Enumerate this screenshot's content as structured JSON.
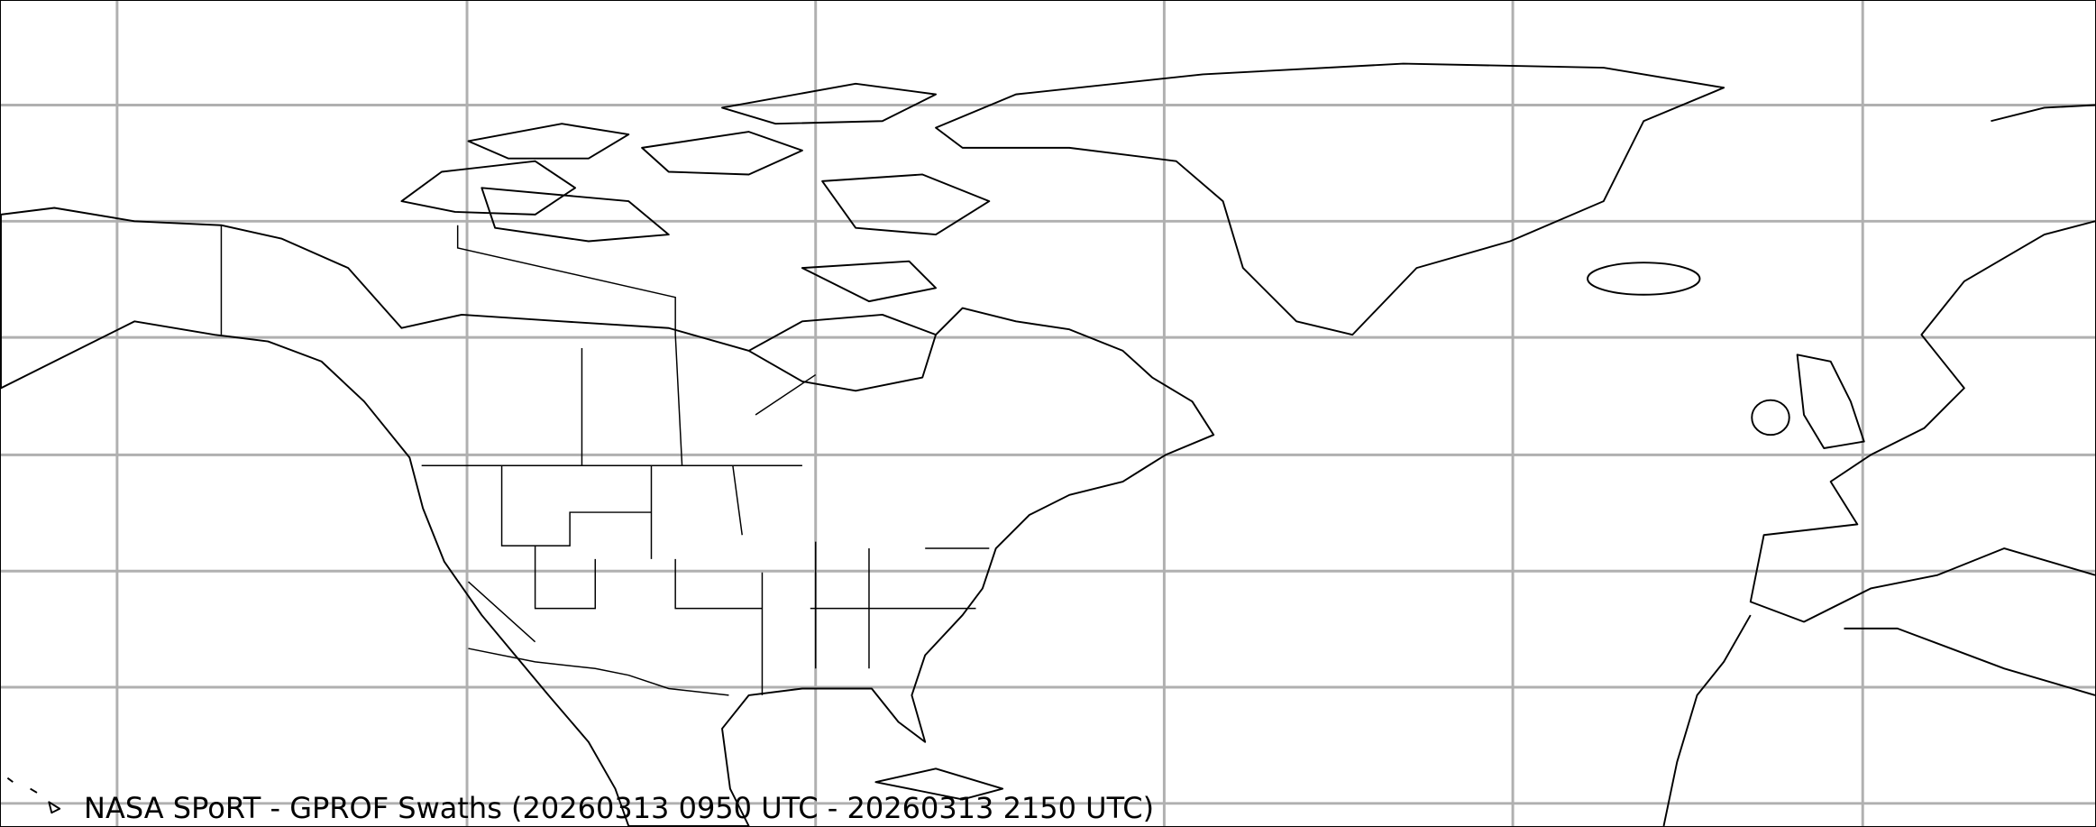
{
  "title": "NASA SPoRT - GPROF Swaths (20260313 0950 UTC - 20260313 2150 UTC)",
  "colors": {
    "coastline": "#000000",
    "gridline": "#b0b0b0",
    "background": "#ffffff"
  }
}
